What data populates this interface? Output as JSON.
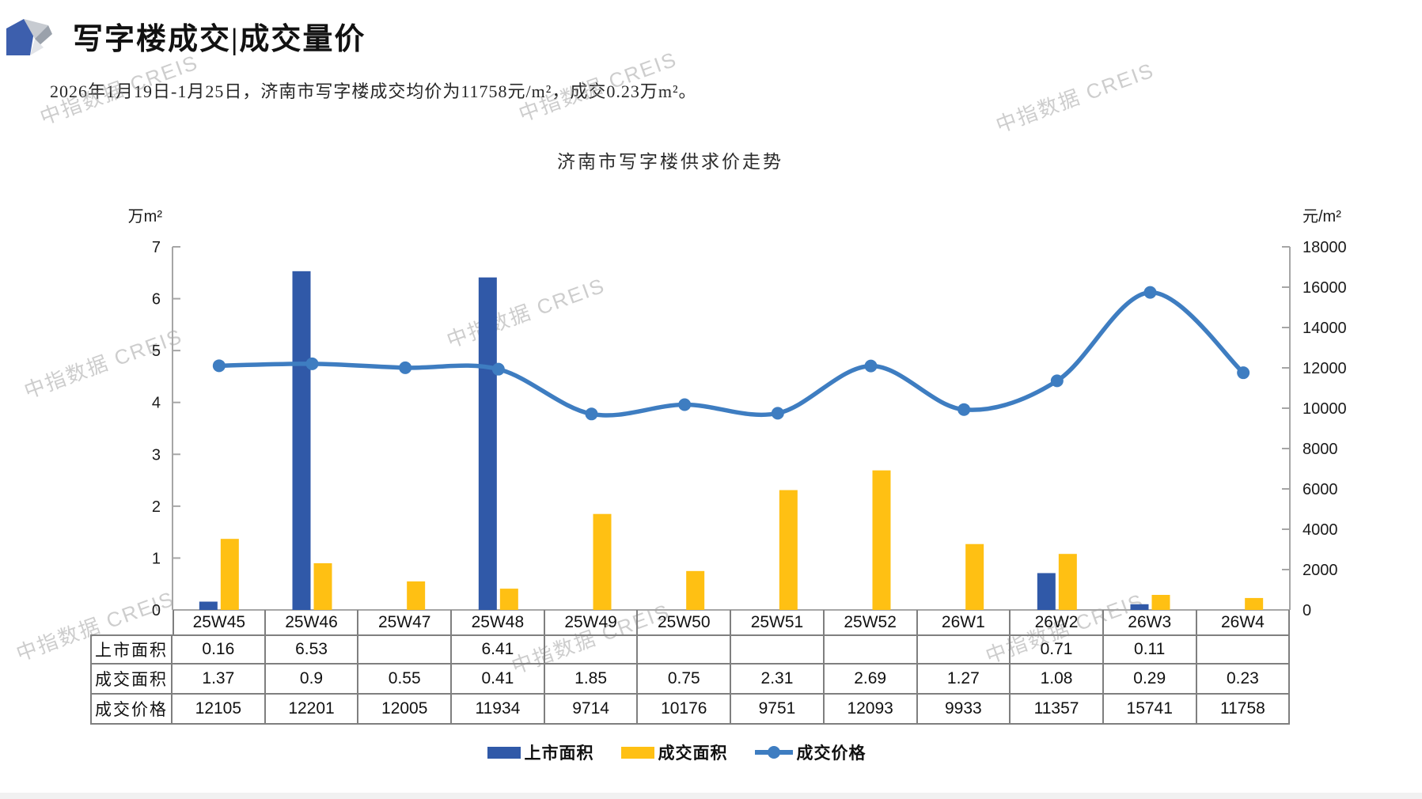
{
  "header": {
    "title": "写字楼成交|成交量价",
    "subtitle": "2026年1月19日-1月25日，济南市写字楼成交均价为11758元/m²，成交0.23万m²。"
  },
  "watermark": {
    "text": "中指数据 CREIS"
  },
  "chart_data": {
    "type": "bar",
    "combo": "grouped bars (left axis) + smooth line (right axis)",
    "title": "济南市写字楼供求价走势",
    "categories": [
      "25W45",
      "25W46",
      "25W47",
      "25W48",
      "25W49",
      "25W50",
      "25W51",
      "25W52",
      "26W1",
      "26W2",
      "26W3",
      "26W4"
    ],
    "series": [
      {
        "name": "上市面积",
        "type": "bar",
        "axis": "left",
        "color": "#3059A8",
        "values": [
          0.16,
          6.53,
          null,
          6.41,
          null,
          null,
          null,
          null,
          null,
          0.71,
          0.11,
          null
        ]
      },
      {
        "name": "成交面积",
        "type": "bar",
        "axis": "left",
        "color": "#FFC013",
        "values": [
          1.37,
          0.9,
          0.55,
          0.41,
          1.85,
          0.75,
          2.31,
          2.69,
          1.27,
          1.08,
          0.29,
          0.23
        ]
      },
      {
        "name": "成交价格",
        "type": "line",
        "axis": "right",
        "color": "#3E7DC1",
        "values": [
          12105,
          12201,
          12005,
          11934,
          9714,
          10176,
          9751,
          12093,
          9933,
          11357,
          15741,
          11758
        ]
      }
    ],
    "left_axis": {
      "unit": "万m²",
      "min": 0,
      "max": 7,
      "step": 1
    },
    "right_axis": {
      "unit": "元/m²",
      "min": 0,
      "max": 18000,
      "step": 2000
    },
    "grid": false,
    "legend_position": "bottom"
  },
  "table": {
    "row_headers": [
      "上市面积",
      "成交面积",
      "成交价格"
    ],
    "columns": [
      "25W45",
      "25W46",
      "25W47",
      "25W48",
      "25W49",
      "25W50",
      "25W51",
      "25W52",
      "26W1",
      "26W2",
      "26W3",
      "26W4"
    ],
    "rows": [
      [
        "0.16",
        "6.53",
        "",
        "6.41",
        "",
        "",
        "",
        "",
        "",
        "0.71",
        "0.11",
        ""
      ],
      [
        "1.37",
        "0.9",
        "0.55",
        "0.41",
        "1.85",
        "0.75",
        "2.31",
        "2.69",
        "1.27",
        "1.08",
        "0.29",
        "0.23"
      ],
      [
        "12105",
        "12201",
        "12005",
        "11934",
        "9714",
        "10176",
        "9751",
        "12093",
        "9933",
        "11357",
        "15741",
        "11758"
      ]
    ]
  }
}
